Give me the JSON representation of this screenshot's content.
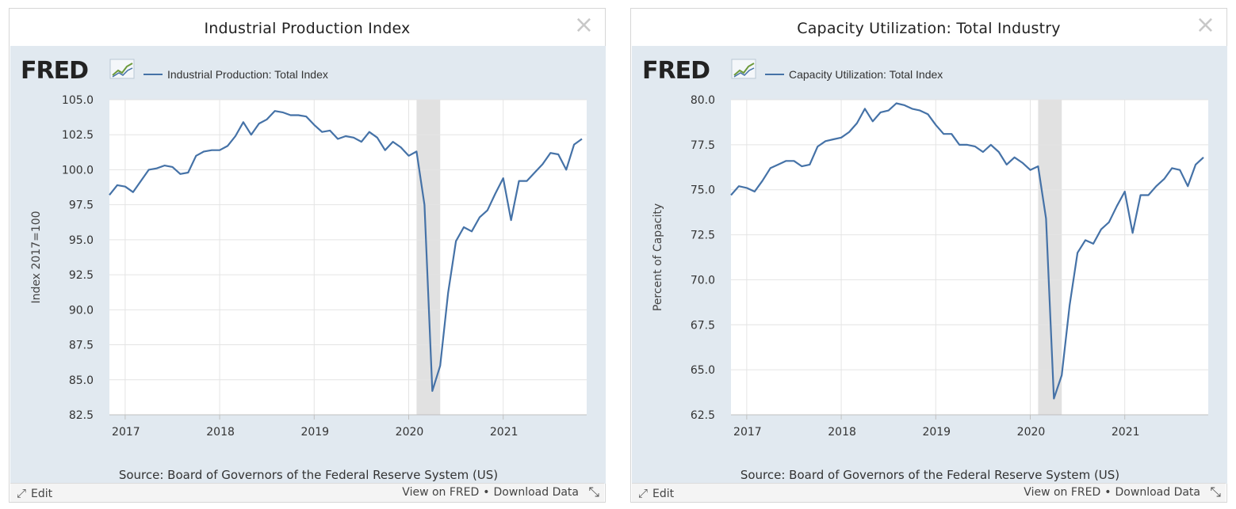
{
  "panels": [
    {
      "title": "Industrial Production Index",
      "legend": "Industrial Production: Total Index",
      "source": "Source: Board of Governors of the Federal Reserve System (US)",
      "edit_label": "Edit",
      "view_label": "View on FRED",
      "separator": "•",
      "download_label": "Download Data",
      "close_symbol": "×"
    },
    {
      "title": "Capacity Utilization: Total Industry",
      "legend": "Capacity Utilization: Total Index",
      "source": "Source: Board of Governors of the Federal Reserve System (US)",
      "edit_label": "Edit",
      "view_label": "View on FRED",
      "separator": "•",
      "download_label": "Download Data",
      "close_symbol": "×"
    }
  ],
  "brand": {
    "logo_text": "FRED",
    "logo_icon": "chart-line-icon"
  },
  "colors": {
    "line": "#4572a7",
    "plot_bg": "#ffffff",
    "panel_bg": "#e1e9f0",
    "recession": "#e1e1e1",
    "logo": "#222222"
  },
  "chart_data": [
    {
      "type": "line",
      "title": "Industrial Production Index",
      "ylabel": "Index 2017=100",
      "xlabel": "",
      "ylim": [
        82.5,
        105.0
      ],
      "yticks": [
        "105.0",
        "102.5",
        "100.0",
        "97.5",
        "95.0",
        "92.5",
        "90.0",
        "87.5",
        "85.0",
        "82.5"
      ],
      "xticks": [
        "2017",
        "2018",
        "2019",
        "2020",
        "2021"
      ],
      "grid": true,
      "legend_position": "top-left",
      "recession": [
        "2020-02",
        "2020-04"
      ],
      "series": [
        {
          "name": "Industrial Production: Total Index",
          "x": [
            "2016-11",
            "2016-12",
            "2017-01",
            "2017-02",
            "2017-03",
            "2017-04",
            "2017-05",
            "2017-06",
            "2017-07",
            "2017-08",
            "2017-09",
            "2017-10",
            "2017-11",
            "2017-12",
            "2018-01",
            "2018-02",
            "2018-03",
            "2018-04",
            "2018-05",
            "2018-06",
            "2018-07",
            "2018-08",
            "2018-09",
            "2018-10",
            "2018-11",
            "2018-12",
            "2019-01",
            "2019-02",
            "2019-03",
            "2019-04",
            "2019-05",
            "2019-06",
            "2019-07",
            "2019-08",
            "2019-09",
            "2019-10",
            "2019-11",
            "2019-12",
            "2020-01",
            "2020-02",
            "2020-03",
            "2020-04",
            "2020-05",
            "2020-06",
            "2020-07",
            "2020-08",
            "2020-09",
            "2020-10",
            "2020-11",
            "2020-12",
            "2021-01",
            "2021-02",
            "2021-03",
            "2021-04",
            "2021-05",
            "2021-06",
            "2021-07",
            "2021-08",
            "2021-09",
            "2021-10",
            "2021-11"
          ],
          "y": [
            98.2,
            98.9,
            98.8,
            98.4,
            99.2,
            100.0,
            100.1,
            100.3,
            100.2,
            99.7,
            99.8,
            101.0,
            101.3,
            101.4,
            101.4,
            101.7,
            102.4,
            103.4,
            102.5,
            103.3,
            103.6,
            104.2,
            104.1,
            103.9,
            103.9,
            103.8,
            103.2,
            102.7,
            102.8,
            102.2,
            102.4,
            102.3,
            102.0,
            102.7,
            102.3,
            101.4,
            102.0,
            101.6,
            101.0,
            101.3,
            97.5,
            84.2,
            86.0,
            91.2,
            94.9,
            95.9,
            95.6,
            96.6,
            97.1,
            98.3,
            99.4,
            96.4,
            99.2,
            99.2,
            99.8,
            100.4,
            101.2,
            101.1,
            100.0,
            101.8,
            102.2
          ]
        }
      ]
    },
    {
      "type": "line",
      "title": "Capacity Utilization: Total Industry",
      "ylabel": "Percent of Capacity",
      "xlabel": "",
      "ylim": [
        62.5,
        80.0
      ],
      "yticks": [
        "80.0",
        "77.5",
        "75.0",
        "72.5",
        "70.0",
        "67.5",
        "65.0",
        "62.5"
      ],
      "xticks": [
        "2017",
        "2018",
        "2019",
        "2020",
        "2021"
      ],
      "grid": true,
      "legend_position": "top-left",
      "recession": [
        "2020-02",
        "2020-04"
      ],
      "series": [
        {
          "name": "Capacity Utilization: Total Index",
          "x": [
            "2016-11",
            "2016-12",
            "2017-01",
            "2017-02",
            "2017-03",
            "2017-04",
            "2017-05",
            "2017-06",
            "2017-07",
            "2017-08",
            "2017-09",
            "2017-10",
            "2017-11",
            "2017-12",
            "2018-01",
            "2018-02",
            "2018-03",
            "2018-04",
            "2018-05",
            "2018-06",
            "2018-07",
            "2018-08",
            "2018-09",
            "2018-10",
            "2018-11",
            "2018-12",
            "2019-01",
            "2019-02",
            "2019-03",
            "2019-04",
            "2019-05",
            "2019-06",
            "2019-07",
            "2019-08",
            "2019-09",
            "2019-10",
            "2019-11",
            "2019-12",
            "2020-01",
            "2020-02",
            "2020-03",
            "2020-04",
            "2020-05",
            "2020-06",
            "2020-07",
            "2020-08",
            "2020-09",
            "2020-10",
            "2020-11",
            "2020-12",
            "2021-01",
            "2021-02",
            "2021-03",
            "2021-04",
            "2021-05",
            "2021-06",
            "2021-07",
            "2021-08",
            "2021-09",
            "2021-10",
            "2021-11"
          ],
          "y": [
            74.7,
            75.2,
            75.1,
            74.9,
            75.5,
            76.2,
            76.4,
            76.6,
            76.6,
            76.3,
            76.4,
            77.4,
            77.7,
            77.8,
            77.9,
            78.2,
            78.7,
            79.5,
            78.8,
            79.3,
            79.4,
            79.8,
            79.7,
            79.5,
            79.4,
            79.2,
            78.6,
            78.1,
            78.1,
            77.5,
            77.5,
            77.4,
            77.1,
            77.5,
            77.1,
            76.4,
            76.8,
            76.5,
            76.1,
            76.3,
            73.4,
            63.4,
            64.7,
            68.6,
            71.5,
            72.2,
            72.0,
            72.8,
            73.2,
            74.1,
            74.9,
            72.6,
            74.7,
            74.7,
            75.2,
            75.6,
            76.2,
            76.1,
            75.2,
            76.4,
            76.8
          ]
        }
      ]
    }
  ]
}
